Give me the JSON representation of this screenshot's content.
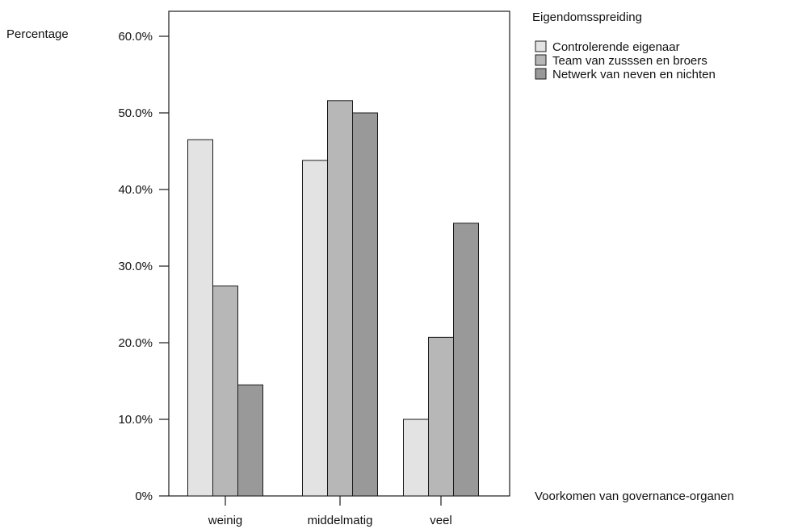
{
  "chart_data": {
    "type": "bar",
    "ylabel": "Percentage",
    "xlabel": "Voorkomen van governance-organen",
    "categories": [
      "weinig",
      "middelmatig",
      "veel"
    ],
    "ylim": [
      0,
      60
    ],
    "yticks": [
      0,
      10,
      20,
      30,
      40,
      50,
      60
    ],
    "ytick_labels": [
      "0%",
      "10.0%",
      "20.0%",
      "30.0%",
      "40.0%",
      "50.0%",
      "60.0%"
    ],
    "legend_title": "Eigendomsspreiding",
    "legend_position": "top-right",
    "grid": false,
    "series": [
      {
        "name": "Controlerende eigenaar",
        "color": "#e3e3e3",
        "values": [
          46.5,
          43.8,
          10.0
        ]
      },
      {
        "name": "Team van zusssen en broers",
        "color": "#b7b7b7",
        "values": [
          27.4,
          51.6,
          20.7
        ]
      },
      {
        "name": "Netwerk van neven en nichten",
        "color": "#999999",
        "values": [
          14.5,
          50.0,
          35.6
        ]
      }
    ]
  }
}
